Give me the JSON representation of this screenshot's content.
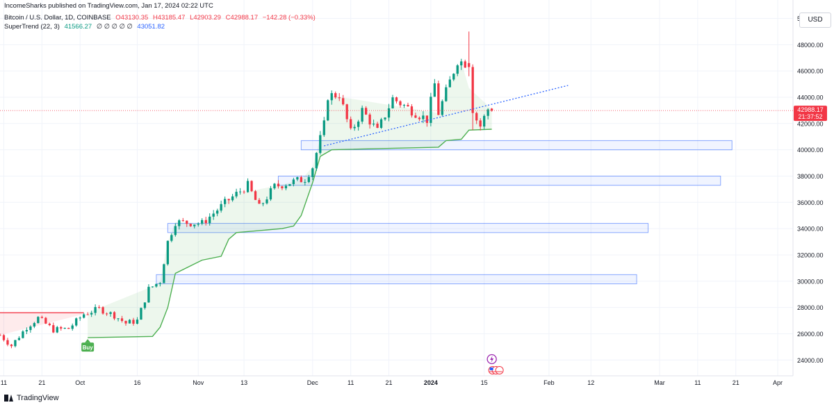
{
  "header": {
    "published": "IncomeSharks published on TradingView.com, Jan 17, 2024 02:22 UTC",
    "symbol": "Bitcoin / U.S. Dollar, 1D, COINBASE",
    "open": "O43130.35",
    "high": "H43185.47",
    "low": "L42903.29",
    "close": "C42988.17",
    "change": "−142.28 (−0.33%)",
    "indicator_name": "SuperTrend (22, 3)",
    "indicator_value1": "41566.27",
    "indicator_zeros": "∅ ∅ ∅ ∅ ∅",
    "indicator_value2": "43051.82",
    "currency": "USD"
  },
  "footer": {
    "brand": "TradingView"
  },
  "colors": {
    "up": "#089981",
    "down": "#f23645",
    "supertrend_up": "#4caf50",
    "supertrend_down": "#f23645",
    "zone": "#2962ff",
    "trendline": "#2962ff"
  },
  "chart_data": {
    "type": "candlestick",
    "title": "Bitcoin / U.S. Dollar, 1D, COINBASE",
    "y_axis": {
      "ylim": [
        22800,
        51400
      ],
      "ticks": [
        24000,
        26000,
        28000,
        30000,
        32000,
        34000,
        36000,
        38000,
        40000,
        42000,
        44000,
        46000,
        48000,
        50000
      ]
    },
    "y_tick_labels": [
      "24000.00",
      "26000.00",
      "28000.00",
      "30000.00",
      "32000.00",
      "34000.00",
      "36000.00",
      "38000.00",
      "40000.00",
      "42000.00",
      "44000.00",
      "46000.00",
      "48000.00",
      "50000.00"
    ],
    "x_axis": {
      "start": "2023-09-10",
      "end": "2024-04-05",
      "ticks": [
        {
          "date": "2023-09-11",
          "label": "11"
        },
        {
          "date": "2023-09-21",
          "label": "21"
        },
        {
          "date": "2023-10-01",
          "label": "Oct"
        },
        {
          "date": "2023-10-16",
          "label": "16"
        },
        {
          "date": "2023-11-01",
          "label": "Nov"
        },
        {
          "date": "2023-11-13",
          "label": "13"
        },
        {
          "date": "2023-12-01",
          "label": "Dec"
        },
        {
          "date": "2023-12-11",
          "label": "11"
        },
        {
          "date": "2023-12-21",
          "label": "21"
        },
        {
          "date": "2024-01-01",
          "label": "2024"
        },
        {
          "date": "2024-01-15",
          "label": "15"
        },
        {
          "date": "2024-02-01",
          "label": "Feb"
        },
        {
          "date": "2024-02-12",
          "label": "12"
        },
        {
          "date": "2024-03-01",
          "label": "Mar"
        },
        {
          "date": "2024-03-11",
          "label": "11"
        },
        {
          "date": "2024-03-21",
          "label": "21"
        },
        {
          "date": "2024-04-01",
          "label": "Apr"
        }
      ]
    },
    "price_line": {
      "value": 42988.17,
      "label": "42988.17",
      "countdown": "21:37:52"
    },
    "close_anchors": [
      {
        "date": "2023-09-10",
        "close": 25900
      },
      {
        "date": "2023-09-13",
        "close": 25100
      },
      {
        "date": "2023-09-17",
        "close": 26500
      },
      {
        "date": "2023-09-20",
        "close": 27200
      },
      {
        "date": "2023-09-24",
        "close": 26300
      },
      {
        "date": "2023-09-28",
        "close": 26400
      },
      {
        "date": "2023-10-02",
        "close": 27500
      },
      {
        "date": "2023-10-06",
        "close": 27900
      },
      {
        "date": "2023-10-10",
        "close": 27400
      },
      {
        "date": "2023-10-13",
        "close": 26800
      },
      {
        "date": "2023-10-16",
        "close": 27000
      },
      {
        "date": "2023-10-19",
        "close": 29400
      },
      {
        "date": "2023-10-22",
        "close": 30000
      },
      {
        "date": "2023-10-24",
        "close": 33000
      },
      {
        "date": "2023-10-26",
        "close": 34500
      },
      {
        "date": "2023-11-02",
        "close": 34400
      },
      {
        "date": "2023-11-09",
        "close": 36200
      },
      {
        "date": "2023-11-14",
        "close": 37300
      },
      {
        "date": "2023-11-17",
        "close": 35600
      },
      {
        "date": "2023-11-21",
        "close": 37200
      },
      {
        "date": "2023-11-29",
        "close": 37800
      },
      {
        "date": "2023-12-01",
        "close": 38700
      },
      {
        "date": "2023-12-04",
        "close": 41900
      },
      {
        "date": "2023-12-05",
        "close": 44100
      },
      {
        "date": "2023-12-08",
        "close": 44200
      },
      {
        "date": "2023-12-11",
        "close": 41300
      },
      {
        "date": "2023-12-14",
        "close": 43000
      },
      {
        "date": "2023-12-18",
        "close": 41400
      },
      {
        "date": "2023-12-22",
        "close": 43900
      },
      {
        "date": "2023-12-27",
        "close": 43000
      },
      {
        "date": "2023-12-31",
        "close": 42300
      },
      {
        "date": "2024-01-02",
        "close": 45000
      },
      {
        "date": "2024-01-03",
        "close": 42800
      },
      {
        "date": "2024-01-08",
        "close": 46800
      },
      {
        "date": "2024-01-10",
        "close": 46600
      },
      {
        "date": "2024-01-12",
        "close": 42800
      },
      {
        "date": "2024-01-14",
        "close": 41800
      },
      {
        "date": "2024-01-16",
        "close": 43100
      }
    ],
    "candle_overrides": [
      {
        "date": "2024-01-11",
        "open": 46600,
        "high": 49000,
        "low": 45600,
        "close": 46300
      },
      {
        "date": "2024-01-12",
        "open": 46300,
        "high": 46500,
        "low": 41500,
        "close": 42800
      },
      {
        "date": "2024-01-17",
        "open": 43130,
        "high": 43185,
        "low": 42903,
        "close": 42988
      }
    ],
    "supertrend": [
      {
        "date": "2023-09-10",
        "value": 27600,
        "dir": "down"
      },
      {
        "date": "2023-10-02",
        "value": 27600,
        "dir": "down"
      },
      {
        "date": "2023-10-03",
        "value": 25700,
        "dir": "up"
      },
      {
        "date": "2023-10-20",
        "value": 25800,
        "dir": "up"
      },
      {
        "date": "2023-10-22",
        "value": 26500,
        "dir": "up"
      },
      {
        "date": "2023-10-24",
        "value": 28000,
        "dir": "up"
      },
      {
        "date": "2023-10-26",
        "value": 30600,
        "dir": "up"
      },
      {
        "date": "2023-11-02",
        "value": 31600,
        "dir": "up"
      },
      {
        "date": "2023-11-07",
        "value": 31900,
        "dir": "up"
      },
      {
        "date": "2023-11-09",
        "value": 33200,
        "dir": "up"
      },
      {
        "date": "2023-11-11",
        "value": 33700,
        "dir": "up"
      },
      {
        "date": "2023-11-23",
        "value": 34000,
        "dir": "up"
      },
      {
        "date": "2023-11-26",
        "value": 34200,
        "dir": "up"
      },
      {
        "date": "2023-11-28",
        "value": 35000,
        "dir": "up"
      },
      {
        "date": "2023-12-01",
        "value": 37500,
        "dir": "up"
      },
      {
        "date": "2023-12-03",
        "value": 39500,
        "dir": "up"
      },
      {
        "date": "2023-12-06",
        "value": 40000,
        "dir": "up"
      },
      {
        "date": "2024-01-03",
        "value": 40200,
        "dir": "up"
      },
      {
        "date": "2024-01-05",
        "value": 40700,
        "dir": "up"
      },
      {
        "date": "2024-01-09",
        "value": 40800,
        "dir": "up"
      },
      {
        "date": "2024-01-11",
        "value": 41500,
        "dir": "up"
      },
      {
        "date": "2024-01-17",
        "value": 41566,
        "dir": "up"
      }
    ],
    "buy_signal": {
      "date": "2023-10-03",
      "label": "Buy"
    },
    "zones": [
      {
        "from": "2023-11-28",
        "to": "2024-03-20",
        "low": 40000,
        "high": 40700
      },
      {
        "from": "2023-11-22",
        "to": "2024-03-17",
        "low": 37300,
        "high": 38000
      },
      {
        "from": "2023-10-24",
        "to": "2024-02-27",
        "low": 33700,
        "high": 34400
      },
      {
        "from": "2023-10-21",
        "to": "2024-02-24",
        "low": 29800,
        "high": 30500
      }
    ],
    "trendline": {
      "from": {
        "date": "2023-12-04",
        "value": 40300
      },
      "to": {
        "date": "2024-02-06",
        "value": 44900
      }
    },
    "event_markers": [
      {
        "date": "2024-01-17"
      }
    ]
  }
}
